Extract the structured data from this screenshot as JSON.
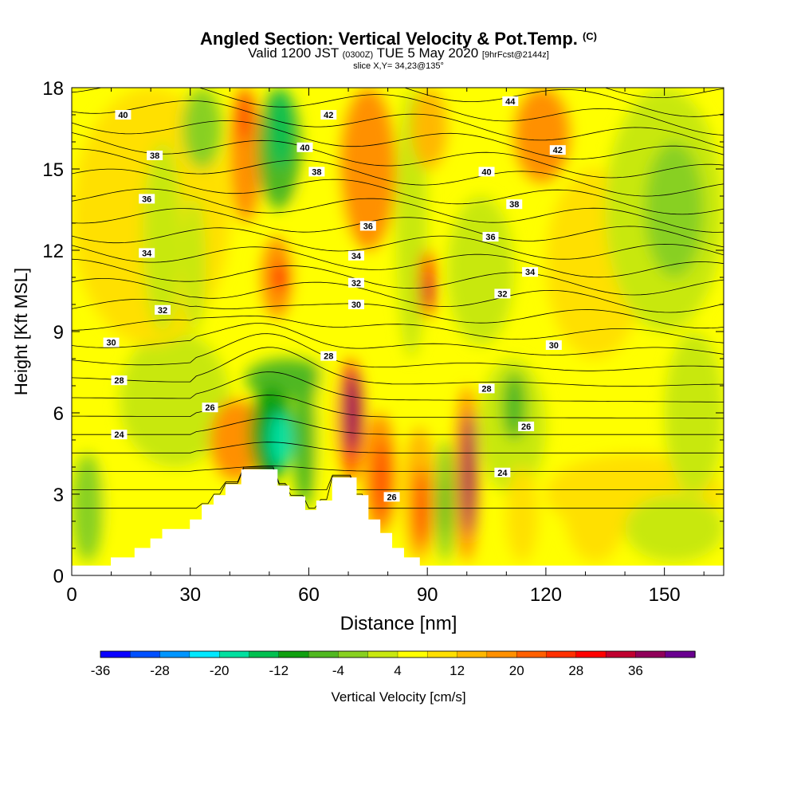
{
  "title": {
    "main": "Angled Section: Vertical Velocity & Pot.Temp.",
    "unit": "(C)",
    "valid_prefix": "Valid 1200 JST",
    "utc": "(0300Z)",
    "valid_date": "TUE 5 May 2020",
    "forecast": "[9hrFcst@2144z]",
    "slice": "slice X,Y= 34,23@135°"
  },
  "chart_data": {
    "type": "heatmap",
    "xlabel": "Distance [nm]",
    "ylabel": "Height [Kft MSL]",
    "xlim": [
      0,
      165
    ],
    "ylim": [
      0,
      18
    ],
    "x_ticks": [
      0,
      30,
      60,
      90,
      120,
      150
    ],
    "y_ticks": [
      0,
      3,
      6,
      9,
      12,
      15,
      18
    ],
    "colorbar": {
      "label": "Vertical Velocity [cm/s]",
      "tick_labels": [
        "-36",
        "-28",
        "-20",
        "-12",
        "-4",
        "4",
        "12",
        "20",
        "28",
        "36"
      ],
      "colors": [
        "#0a00ff",
        "#0050ff",
        "#0095ff",
        "#00e8ff",
        "#00e0a0",
        "#00c050",
        "#10a010",
        "#50b820",
        "#88d020",
        "#c8e810",
        "#ffff00",
        "#ffe000",
        "#ffb800",
        "#ff9000",
        "#ff6000",
        "#ff3000",
        "#ff0000",
        "#c00030",
        "#90005a",
        "#6a0090"
      ]
    },
    "velocity_cells": [
      {
        "x": [
          0,
          8
        ],
        "y": [
          0.5,
          4.5
        ],
        "value": -6
      },
      {
        "x": [
          8,
          25
        ],
        "y": [
          1,
          5
        ],
        "value": 2
      },
      {
        "x": [
          12,
          40
        ],
        "y": [
          4,
          9
        ],
        "value": -4
      },
      {
        "x": [
          35,
          48
        ],
        "y": [
          3.5,
          6.5
        ],
        "value": 14
      },
      {
        "x": [
          44,
          65
        ],
        "y": [
          6.5,
          8
        ],
        "value": -10
      },
      {
        "x": [
          45,
          56
        ],
        "y": [
          3.5,
          7
        ],
        "value": -16
      },
      {
        "x": [
          50,
          56
        ],
        "y": [
          4,
          6
        ],
        "value": -22
      },
      {
        "x": [
          56,
          62
        ],
        "y": [
          2.5,
          7.5
        ],
        "value": -10
      },
      {
        "x": [
          62,
          67
        ],
        "y": [
          3,
          8
        ],
        "value": 2
      },
      {
        "x": [
          67,
          74
        ],
        "y": [
          3.5,
          8
        ],
        "value": 18
      },
      {
        "x": [
          69,
          73
        ],
        "y": [
          4.5,
          7.5
        ],
        "value": 34
      },
      {
        "x": [
          74,
          82
        ],
        "y": [
          1.5,
          6
        ],
        "value": 14
      },
      {
        "x": [
          77,
          80
        ],
        "y": [
          2,
          5
        ],
        "value": 22
      },
      {
        "x": [
          84,
          92
        ],
        "y": [
          0.5,
          5.5
        ],
        "value": 10
      },
      {
        "x": [
          87,
          90
        ],
        "y": [
          1,
          4
        ],
        "value": 24
      },
      {
        "x": [
          92,
          97
        ],
        "y": [
          0.5,
          5
        ],
        "value": -6
      },
      {
        "x": [
          93,
          95
        ],
        "y": [
          1.5,
          3.5
        ],
        "value": -12
      },
      {
        "x": [
          97,
          103
        ],
        "y": [
          0.5,
          7
        ],
        "value": 14
      },
      {
        "x": [
          99,
          102
        ],
        "y": [
          1.5,
          6
        ],
        "value": 34
      },
      {
        "x": [
          103,
          120
        ],
        "y": [
          3,
          8
        ],
        "value": -4
      },
      {
        "x": [
          109,
          115
        ],
        "y": [
          5,
          7.5
        ],
        "value": -10
      },
      {
        "x": [
          110,
          118
        ],
        "y": [
          0.5,
          4
        ],
        "value": 4
      },
      {
        "x": [
          120,
          165
        ],
        "y": [
          1.5,
          4.5
        ],
        "value": 4
      },
      {
        "x": [
          125,
          140
        ],
        "y": [
          0.5,
          4
        ],
        "value": 4
      },
      {
        "x": [
          140,
          165
        ],
        "y": [
          0.5,
          3
        ],
        "value": -4
      },
      {
        "x": [
          0,
          40
        ],
        "y": [
          8.5,
          18
        ],
        "value": 4
      },
      {
        "x": [
          18,
          28
        ],
        "y": [
          9,
          16
        ],
        "value": -4
      },
      {
        "x": [
          28,
          38
        ],
        "y": [
          15,
          18
        ],
        "value": -6
      },
      {
        "x": [
          28,
          34
        ],
        "y": [
          9,
          14
        ],
        "value": -4
      },
      {
        "x": [
          40,
          48
        ],
        "y": [
          13,
          18
        ],
        "value": 14
      },
      {
        "x": [
          42,
          45
        ],
        "y": [
          16,
          18
        ],
        "value": 22
      },
      {
        "x": [
          47,
          58
        ],
        "y": [
          13.5,
          18
        ],
        "value": -10
      },
      {
        "x": [
          50,
          56
        ],
        "y": [
          15,
          18
        ],
        "value": -20
      },
      {
        "x": [
          48,
          56
        ],
        "y": [
          9.5,
          12.5
        ],
        "value": 14
      },
      {
        "x": [
          51,
          55
        ],
        "y": [
          10.5,
          11.5
        ],
        "value": 22
      },
      {
        "x": [
          56,
          70
        ],
        "y": [
          9,
          15
        ],
        "value": 2
      },
      {
        "x": [
          68,
          82
        ],
        "y": [
          12,
          18
        ],
        "value": 12
      },
      {
        "x": [
          82,
          90
        ],
        "y": [
          8,
          18
        ],
        "value": -4
      },
      {
        "x": [
          88,
          92
        ],
        "y": [
          9.5,
          12
        ],
        "value": 20
      },
      {
        "x": [
          89,
          91
        ],
        "y": [
          10,
          11
        ],
        "value": 30
      },
      {
        "x": [
          86,
          95
        ],
        "y": [
          15,
          18
        ],
        "value": 10
      },
      {
        "x": [
          95,
          112
        ],
        "y": [
          8.5,
          14
        ],
        "value": -4
      },
      {
        "x": [
          112,
          126
        ],
        "y": [
          14.5,
          18
        ],
        "value": 12
      },
      {
        "x": [
          120,
          145
        ],
        "y": [
          8,
          15
        ],
        "value": 4
      },
      {
        "x": [
          135,
          165
        ],
        "y": [
          9,
          18
        ],
        "value": -4
      },
      {
        "x": [
          145,
          160
        ],
        "y": [
          11,
          16
        ],
        "value": -6
      },
      {
        "x": [
          150,
          165
        ],
        "y": [
          3,
          9
        ],
        "value": -4
      }
    ],
    "terrain": [
      [
        0,
        0.35
      ],
      [
        10,
        0.35
      ],
      [
        10,
        0.65
      ],
      [
        16,
        0.65
      ],
      [
        16,
        1.0
      ],
      [
        20,
        1.0
      ],
      [
        20,
        1.35
      ],
      [
        23,
        1.35
      ],
      [
        23,
        1.7
      ],
      [
        30,
        1.7
      ],
      [
        30,
        2.05
      ],
      [
        33,
        2.05
      ],
      [
        33,
        2.6
      ],
      [
        36,
        2.6
      ],
      [
        36,
        2.95
      ],
      [
        39,
        2.95
      ],
      [
        39,
        3.35
      ],
      [
        43,
        3.35
      ],
      [
        43,
        3.9
      ],
      [
        52,
        3.9
      ],
      [
        52,
        3.3
      ],
      [
        55,
        3.3
      ],
      [
        55,
        2.9
      ],
      [
        59,
        2.9
      ],
      [
        59,
        2.4
      ],
      [
        62,
        2.4
      ],
      [
        62,
        2.75
      ],
      [
        66,
        2.75
      ],
      [
        66,
        3.6
      ],
      [
        72,
        3.6
      ],
      [
        72,
        2.95
      ],
      [
        75,
        2.95
      ],
      [
        75,
        2.05
      ],
      [
        78,
        2.05
      ],
      [
        78,
        1.55
      ],
      [
        81,
        1.55
      ],
      [
        81,
        1.0
      ],
      [
        84,
        1.0
      ],
      [
        84,
        0.65
      ],
      [
        88,
        0.65
      ],
      [
        88,
        0.35
      ],
      [
        165,
        0.35
      ]
    ],
    "isentropes": {
      "levels": [
        20,
        21,
        22,
        23,
        24,
        25,
        26,
        27,
        28,
        29,
        30,
        31,
        32,
        33,
        34,
        35,
        36,
        37,
        38,
        39,
        40,
        41,
        42,
        43,
        44,
        45
      ],
      "labeled": [
        {
          "text": "40",
          "x": 13,
          "y": 17.0
        },
        {
          "text": "42",
          "x": 65,
          "y": 17.0
        },
        {
          "text": "44",
          "x": 111,
          "y": 17.5
        },
        {
          "text": "38",
          "x": 21,
          "y": 15.5
        },
        {
          "text": "40",
          "x": 59,
          "y": 15.8
        },
        {
          "text": "42",
          "x": 123,
          "y": 15.7
        },
        {
          "text": "36",
          "x": 19,
          "y": 13.9
        },
        {
          "text": "38",
          "x": 62,
          "y": 14.9
        },
        {
          "text": "40",
          "x": 105,
          "y": 14.9
        },
        {
          "text": "38",
          "x": 112,
          "y": 13.7
        },
        {
          "text": "36",
          "x": 75,
          "y": 12.9
        },
        {
          "text": "36",
          "x": 106,
          "y": 12.5
        },
        {
          "text": "34",
          "x": 19,
          "y": 11.9
        },
        {
          "text": "34",
          "x": 72,
          "y": 11.8
        },
        {
          "text": "34",
          "x": 116,
          "y": 11.2
        },
        {
          "text": "32",
          "x": 72,
          "y": 10.8
        },
        {
          "text": "32",
          "x": 109,
          "y": 10.4
        },
        {
          "text": "32",
          "x": 23,
          "y": 9.8
        },
        {
          "text": "30",
          "x": 72,
          "y": 10.0
        },
        {
          "text": "30",
          "x": 122,
          "y": 8.5
        },
        {
          "text": "30",
          "x": 10,
          "y": 8.6
        },
        {
          "text": "28",
          "x": 65,
          "y": 8.1
        },
        {
          "text": "28",
          "x": 12,
          "y": 7.2
        },
        {
          "text": "28",
          "x": 105,
          "y": 6.9
        },
        {
          "text": "26",
          "x": 35,
          "y": 6.2
        },
        {
          "text": "26",
          "x": 115,
          "y": 5.5
        },
        {
          "text": "24",
          "x": 12,
          "y": 5.2
        },
        {
          "text": "24",
          "x": 109,
          "y": 3.8
        },
        {
          "text": "26",
          "x": 81,
          "y": 2.9
        }
      ]
    }
  }
}
